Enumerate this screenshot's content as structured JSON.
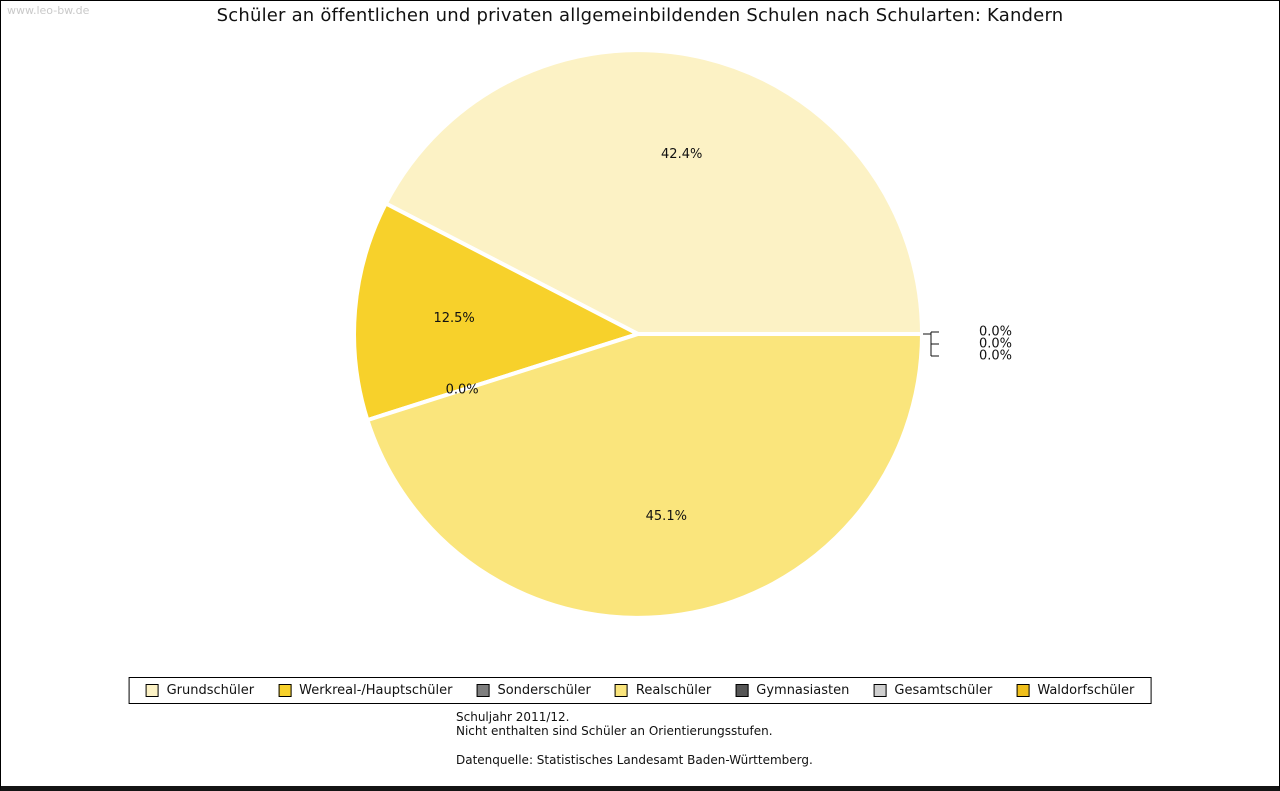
{
  "watermark": "www.leo-bw.de",
  "title": "Schüler an öffentlichen und privaten allgemeinbildenden Schulen nach Schularten: Kandern",
  "chart_data": {
    "type": "pie",
    "title": "Schüler an öffentlichen und privaten allgemeinbildenden Schulen nach Schularten: Kandern",
    "values_unit": "percent",
    "direction": "counterclockwise",
    "start_angle_deg": 0,
    "legend_position": "bottom",
    "slices": [
      {
        "label": "Grundschüler",
        "value": 42.4,
        "color": "#FCF2C5"
      },
      {
        "label": "Werkreal-/Hauptschüler",
        "value": 12.5,
        "color": "#F7D12B"
      },
      {
        "label": "Sonderschüler",
        "value": 0.0,
        "color": "#7E7E7E"
      },
      {
        "label": "Realschüler",
        "value": 45.1,
        "color": "#FAE57C"
      },
      {
        "label": "Gymnasiasten",
        "value": 0.0,
        "color": "#565656"
      },
      {
        "label": "Gesamtschüler",
        "value": 0.0,
        "color": "#CFCFCF"
      },
      {
        "label": "Waldorfschüler",
        "value": 0.0,
        "color": "#EFBF1B"
      }
    ]
  },
  "footnotes": [
    "Schuljahr 2011/12.",
    "Nicht enthalten sind Schüler an Orientierungsstufen."
  ],
  "source": "Datenquelle: Statistisches Landesamt Baden-Württemberg."
}
